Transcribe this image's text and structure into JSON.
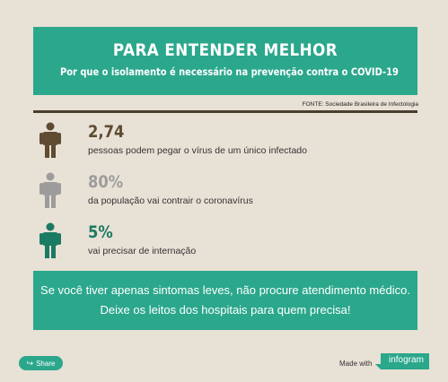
{
  "header": {
    "title": "PARA ENTENDER MELHOR",
    "subtitle": "Por que o isolamento é necessário na prevenção contra o COVID-19"
  },
  "source": "FONTE: Sociedade Brasileira de Infectologia",
  "stats": [
    {
      "value": "2,74",
      "description": "pessoas podem pegar o vírus de um único infectado",
      "color": "#5e4b31"
    },
    {
      "value": "80%",
      "description": "da população vai contrair o coronavírus",
      "color": "#9c9c9c"
    },
    {
      "value": "5%",
      "description": "vai precisar de internação",
      "color": "#1b7a62"
    }
  ],
  "banner": {
    "line1": "Se você tiver apenas sintomas leves, não procure atendimento médico.",
    "line2": "Deixe os leitos dos hospitais para quem precisa!"
  },
  "footer": {
    "share_label": "Share",
    "made_with": "Made with",
    "brand": "infogram"
  },
  "colors": {
    "accent": "#2ba78c",
    "background": "#e8e1d6",
    "rule": "#4a3e2d"
  }
}
